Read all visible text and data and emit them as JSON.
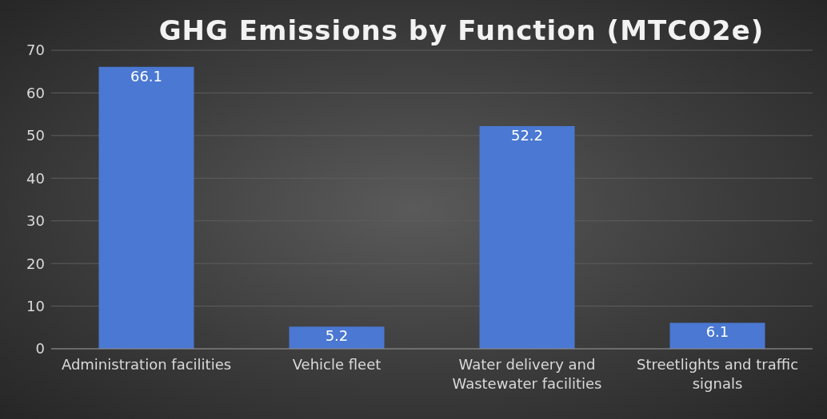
{
  "chart_data": {
    "type": "bar",
    "title": "GHG Emissions by Function (MTCO2e)",
    "categories": [
      "Administration facilities",
      "Vehicle fleet",
      "Water delivery and Wastewater facilities",
      "Streetlights and traffic signals"
    ],
    "values": [
      66.1,
      5.2,
      52.2,
      6.1
    ],
    "color": "#4a78d2",
    "ylim": [
      0,
      70
    ],
    "yticks": [
      0,
      10,
      20,
      30,
      40,
      50,
      60,
      70
    ],
    "grid": "y",
    "data_labels": true
  }
}
